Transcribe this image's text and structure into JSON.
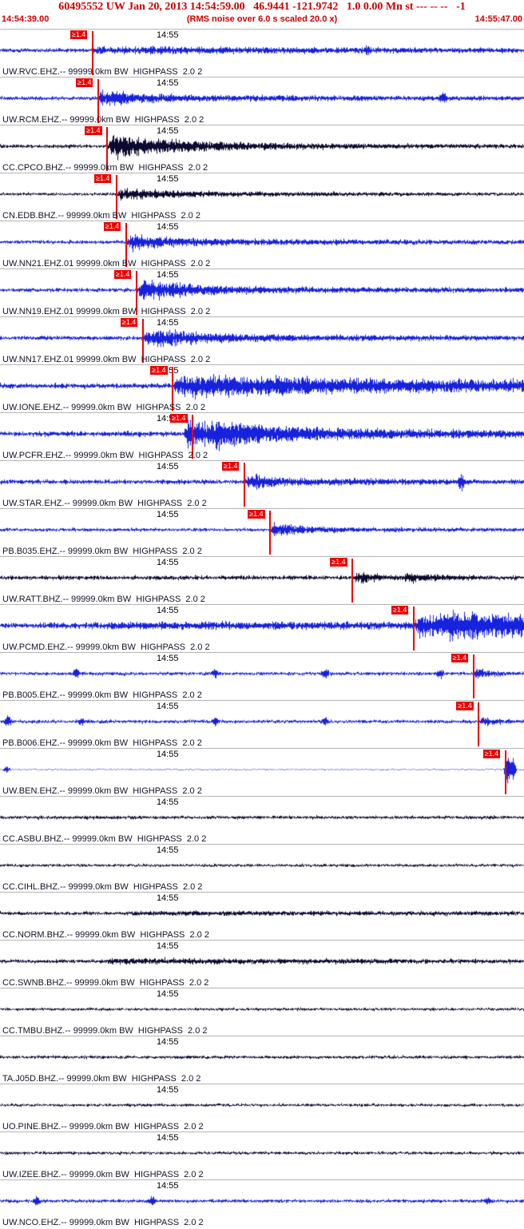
{
  "header": {
    "title": "60495552 UW Jan 20, 2013 14:54:59.00   46.9441 -121.9742   1.0 0.00 Mn st --- -- --   -1",
    "start_time": "14:54:39.00",
    "note": "(RMS noise over 6.0 s scaled 20.0 x)",
    "end_time": "14:55:47.00",
    "accent_color": "#cc0000"
  },
  "chart_data": {
    "type": "line",
    "kind": "multi-trace seismogram (RMS-scaled highpass waveforms)",
    "title": "60495552 UW Jan 20, 2013 14:54:59.00",
    "time_window": {
      "start": "14:54:39.00",
      "end": "14:55:47.00",
      "duration_s": 68
    },
    "minute_tick": {
      "label": "14:55",
      "fraction": 0.309
    },
    "pick_tag_label": "≥1.4",
    "colors": {
      "bright": "#1722dd",
      "dark": "#0a0a30",
      "pick": "#ee0000",
      "separator": "#b4b4b4"
    },
    "traces": [
      {
        "label": "UW.RVC.EHZ.-- 99999.0km BW  HIGHPASS  2.0 2",
        "color": "bright",
        "pick": 0.175,
        "noise": 2.6,
        "bursts": [
          {
            "t": 0.175,
            "amp": 4,
            "decay": 0.6
          }
        ],
        "spikes": [
          {
            "t": 0.7,
            "amp": 4
          }
        ]
      },
      {
        "label": "UW.RCM.EHZ.-- 99999.0km BW  HIGHPASS  2.0 2",
        "color": "bright",
        "pick": 0.186,
        "noise": 2.4,
        "bursts": [
          {
            "t": 0.186,
            "amp": 13,
            "decay": 0.05
          },
          {
            "t": 0.2,
            "amp": 4,
            "decay": 0.5
          }
        ],
        "spikes": [
          {
            "t": 0.845,
            "amp": 7
          }
        ]
      },
      {
        "label": "CC.CPCO.BHZ.-- 99999.0km BW  HIGHPASS  2.0 2",
        "color": "dark",
        "pick": 0.203,
        "noise": 2.2,
        "bursts": [
          {
            "t": 0.205,
            "amp": 16,
            "decay": 0.12
          },
          {
            "t": 0.21,
            "amp": 5,
            "decay": 0.45
          }
        ],
        "spikes": []
      },
      {
        "label": "CN.EDB.BHZ.-- 99999.0km BW  HIGHPASS  2.0 2",
        "color": "dark",
        "pick": 0.221,
        "noise": 1.8,
        "bursts": [
          {
            "t": 0.222,
            "amp": 7,
            "decay": 0.1
          },
          {
            "t": 0.23,
            "amp": 2.5,
            "decay": 0.5
          }
        ],
        "spikes": []
      },
      {
        "label": "UW.NN21.EHZ.01 99999.0km BW  HIGHPASS  2.0 2",
        "color": "bright",
        "pick": 0.239,
        "noise": 2.4,
        "bursts": [
          {
            "t": 0.24,
            "amp": 11,
            "decay": 0.07
          },
          {
            "t": 0.25,
            "amp": 3.5,
            "decay": 0.5
          }
        ],
        "spikes": []
      },
      {
        "label": "UW.NN19.EHZ.01 99999.0km BW  HIGHPASS  2.0 2",
        "color": "bright",
        "pick": 0.259,
        "noise": 2.6,
        "bursts": [
          {
            "t": 0.26,
            "amp": 15,
            "decay": 0.08
          },
          {
            "t": 0.27,
            "amp": 4,
            "decay": 0.5
          }
        ],
        "spikes": []
      },
      {
        "label": "UW.NN17.EHZ.01 99999.0km BW  HIGHPASS  2.0 2",
        "color": "bright",
        "pick": 0.271,
        "noise": 2.6,
        "bursts": [
          {
            "t": 0.272,
            "amp": 12,
            "decay": 0.1
          },
          {
            "t": 0.28,
            "amp": 4,
            "decay": 0.5
          }
        ],
        "spikes": []
      },
      {
        "label": "UW.IONE.EHZ.-- 99999.0km BW  HIGHPASS  2.0 2",
        "color": "bright",
        "pick": 0.328,
        "noise": 3.5,
        "bursts": [
          {
            "t": 0.33,
            "amp": 11,
            "decay": 0.5
          },
          {
            "t": 0.34,
            "amp": 6,
            "decay": 1.2
          }
        ],
        "spikes": []
      },
      {
        "label": "UW.PCFR.EHZ.-- 99999.0km BW  HIGHPASS  2.0 2",
        "color": "bright",
        "pick": 0.366,
        "noise": 3.5,
        "bursts": [
          {
            "t": 0.35,
            "amp": 26,
            "decay": 0.12
          },
          {
            "t": 0.4,
            "amp": 6,
            "decay": 0.8
          }
        ],
        "spikes": []
      },
      {
        "label": "UW.STAR.EHZ.-- 99999.0km BW  HIGHPASS  2.0 2",
        "color": "bright",
        "pick": 0.465,
        "noise": 3.0,
        "bursts": [
          {
            "t": 0.465,
            "amp": 13,
            "decay": 0.04
          },
          {
            "t": 0.475,
            "amp": 3,
            "decay": 0.4
          }
        ],
        "spikes": [
          {
            "t": 0.88,
            "amp": 11
          }
        ]
      },
      {
        "label": "PB.B035.EHZ.-- 99999.0km BW  HIGHPASS  2.0 2",
        "color": "bright",
        "pick": 0.514,
        "noise": 2.2,
        "bursts": [
          {
            "t": 0.514,
            "amp": 14,
            "decay": 0.035
          },
          {
            "t": 0.53,
            "amp": 2.5,
            "decay": 0.3
          }
        ],
        "spikes": []
      },
      {
        "label": "UW.RATT.BHZ.-- 99999.0km BW  HIGHPASS  2.0 2",
        "color": "dark",
        "pick": 0.671,
        "noise": 2.8,
        "bursts": [
          {
            "t": 0.672,
            "amp": 8,
            "decay": 0.05
          },
          {
            "t": 0.77,
            "amp": 7,
            "decay": 0.06
          }
        ],
        "spikes": []
      },
      {
        "label": "UW.PCMD.EHZ.-- 99999.0km BW  HIGHPASS  2.0 2",
        "color": "bright",
        "pick": 0.788,
        "noise": 4.0,
        "bursts": [
          {
            "t": 0.2,
            "amp": 2,
            "decay": 3
          },
          {
            "t": 0.79,
            "amp": 14,
            "decay": 0.4
          },
          {
            "t": 0.85,
            "amp": 8,
            "decay": 0.5
          }
        ],
        "spikes": []
      },
      {
        "label": "PB.B005.EHZ.-- 99999.0km BW  HIGHPASS  2.0 2",
        "color": "bright",
        "pick": 0.902,
        "noise": 2.2,
        "bursts": [
          {
            "t": 0.902,
            "amp": 10,
            "decay": 0.03
          }
        ],
        "spikes": [
          {
            "t": 0.145,
            "amp": 6
          },
          {
            "t": 0.41,
            "amp": 6
          },
          {
            "t": 0.62,
            "amp": 6
          },
          {
            "t": 0.84,
            "amp": 6
          }
        ]
      },
      {
        "label": "PB.B006.EHZ.-- 99999.0km BW  HIGHPASS  2.0 2",
        "color": "bright",
        "pick": 0.912,
        "noise": 2.2,
        "bursts": [
          {
            "t": 0.912,
            "amp": 9,
            "decay": 0.03
          }
        ],
        "spikes": [
          {
            "t": 0.015,
            "amp": 8
          },
          {
            "t": 0.155,
            "amp": 5
          },
          {
            "t": 0.41,
            "amp": 5
          },
          {
            "t": 0.62,
            "amp": 5
          }
        ]
      },
      {
        "label": "UW.BEN.EHZ.-- 99999.0km BW  HIGHPASS  2.0 2",
        "color": "bright",
        "pick": 0.963,
        "noise": 0.5,
        "bursts": [],
        "spikes": [
          {
            "t": 0.012,
            "amp": 4
          },
          {
            "t": 0.968,
            "amp": 25
          },
          {
            "t": 0.978,
            "amp": 18
          }
        ]
      },
      {
        "label": "CC.ASBU.BHZ.-- 99999.0km BW  HIGHPASS  2.0 2",
        "color": "dark",
        "pick": null,
        "noise": 2.2,
        "bursts": [],
        "spikes": []
      },
      {
        "label": "CC.CIHL.BHZ.-- 99999.0km BW  HIGHPASS  2.0 2",
        "color": "dark",
        "pick": null,
        "noise": 1.8,
        "bursts": [],
        "spikes": []
      },
      {
        "label": "CC.NORM.BHZ.-- 99999.0km BW  HIGHPASS  2.0 2",
        "color": "dark",
        "pick": null,
        "noise": 2.2,
        "bursts": [
          {
            "t": 0.25,
            "amp": 1.5,
            "decay": 1.5
          }
        ],
        "spikes": []
      },
      {
        "label": "CC.SWNB.BHZ.-- 99999.0km BW  HIGHPASS  2.0 2",
        "color": "dark",
        "pick": null,
        "noise": 2.4,
        "bursts": [
          {
            "t": 0.2,
            "amp": 2.5,
            "decay": 0.6
          }
        ],
        "spikes": []
      },
      {
        "label": "CC.TMBU.BHZ.-- 99999.0km BW  HIGHPASS  2.0 2",
        "color": "dark",
        "pick": null,
        "noise": 1.8,
        "bursts": [],
        "spikes": []
      },
      {
        "label": "TA.J05D.BHZ.-- 99999.0km BW  HIGHPASS  2.0 2",
        "color": "dark",
        "pick": null,
        "noise": 2.0,
        "bursts": [],
        "spikes": []
      },
      {
        "label": "UO.PINE.BHZ.-- 99999.0km BW  HIGHPASS  2.0 2",
        "color": "dark",
        "pick": null,
        "noise": 1.8,
        "bursts": [],
        "spikes": []
      },
      {
        "label": "UW.IZEE.BHZ.-- 99999.0km BW  HIGHPASS  2.0 2",
        "color": "dark",
        "pick": null,
        "noise": 1.9,
        "bursts": [],
        "spikes": []
      },
      {
        "label": "UW.NCO.EHZ.-- 99999.0km BW  HIGHPASS  2.0 2",
        "color": "bright",
        "pick": null,
        "noise": 2.2,
        "bursts": [],
        "spikes": [
          {
            "t": 0.07,
            "amp": 7
          },
          {
            "t": 0.29,
            "amp": 5
          },
          {
            "t": 0.93,
            "amp": 5
          }
        ]
      }
    ]
  }
}
